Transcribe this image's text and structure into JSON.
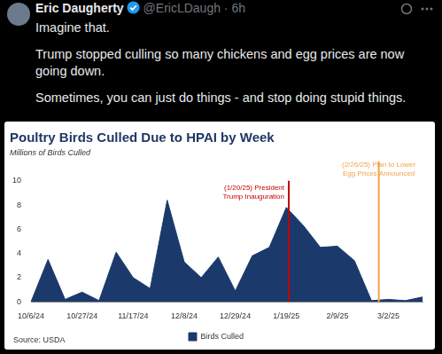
{
  "tweet": {
    "name": "Eric Daugherty",
    "meta": "@EricLDaugh · 6h",
    "text": [
      "Imagine that.",
      "Trump stopped culling so many chickens and egg prices are now going down.",
      "Sometimes, you can just do things - and stop doing stupid things."
    ]
  },
  "chart_data": {
    "type": "area",
    "title": "Poultry Birds Culled Due to HPAI by Week",
    "subtitle": "Millions of Birds Culled",
    "source": "Source: USDA",
    "categories": [
      "10/6/24",
      null,
      null,
      "10/27/24",
      null,
      null,
      "11/17/24",
      null,
      null,
      "12/8/24",
      null,
      null,
      "12/29/24",
      null,
      null,
      "1/19/25",
      null,
      null,
      "2/9/25",
      null,
      null,
      "3/2/25",
      null,
      null
    ],
    "series": [
      {
        "name": "Birds Culled",
        "color": "#1b3a6b",
        "values": [
          0,
          3.5,
          0.2,
          0.8,
          0.1,
          4.1,
          2.0,
          1.1,
          8.4,
          3.3,
          2.0,
          3.7,
          0.9,
          3.8,
          4.5,
          7.8,
          6.3,
          4.5,
          4.6,
          3.4,
          0.1,
          0.2,
          0.1,
          0.4
        ]
      }
    ],
    "ylim": [
      0,
      10
    ],
    "yticks": [
      0,
      2,
      4,
      6,
      8,
      10
    ],
    "grid": false,
    "legend": "bottom",
    "annotations": [
      {
        "date": "1/20/25",
        "text": [
          "(1/20/25) President",
          "Trump Inauguration"
        ],
        "color": "#c00000"
      },
      {
        "date": "2/26/25",
        "text": [
          "(2/26/25) Plan to Lower",
          "Egg Prices Announced"
        ],
        "color": "#f4a14a"
      }
    ]
  }
}
